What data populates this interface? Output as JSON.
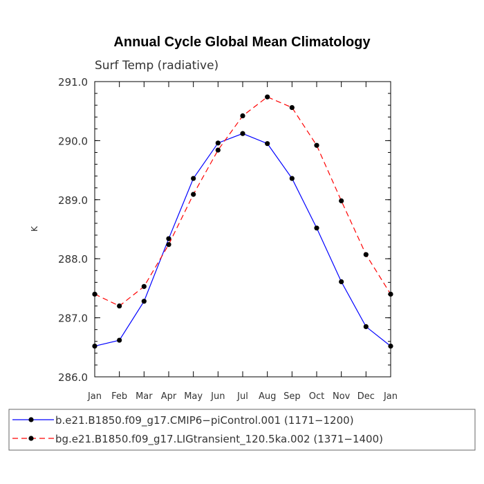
{
  "chart_data": {
    "type": "line",
    "title": "Annual Cycle Global Mean Climatology",
    "subtitle": "Surf Temp (radiative)",
    "xlabel": "",
    "ylabel": "K",
    "categories": [
      "Jan",
      "Feb",
      "Mar",
      "Apr",
      "May",
      "Jun",
      "Jul",
      "Aug",
      "Sep",
      "Oct",
      "Nov",
      "Dec",
      "Jan"
    ],
    "ylim": [
      286.0,
      291.0
    ],
    "yticks": [
      "286.0",
      "287.0",
      "288.0",
      "289.0",
      "290.0",
      "291.0"
    ],
    "series": [
      {
        "name": "b.e21.B1850.f09_g17.CMIP6−piControl.001 (1171−1200)",
        "color": "#0000ff",
        "dash": "solid",
        "values": [
          286.52,
          286.62,
          287.28,
          288.34,
          289.36,
          289.96,
          290.12,
          289.95,
          289.36,
          288.52,
          287.61,
          286.85,
          286.52
        ]
      },
      {
        "name": "bg.e21.B1850.f09_g17.LIGtransient_120.5ka.002 (1371−1400)",
        "color": "#ff0000",
        "dash": "dashed",
        "values": [
          287.4,
          287.2,
          287.53,
          288.24,
          289.09,
          289.84,
          290.42,
          290.74,
          290.56,
          289.92,
          288.98,
          288.07,
          287.4
        ]
      }
    ]
  }
}
